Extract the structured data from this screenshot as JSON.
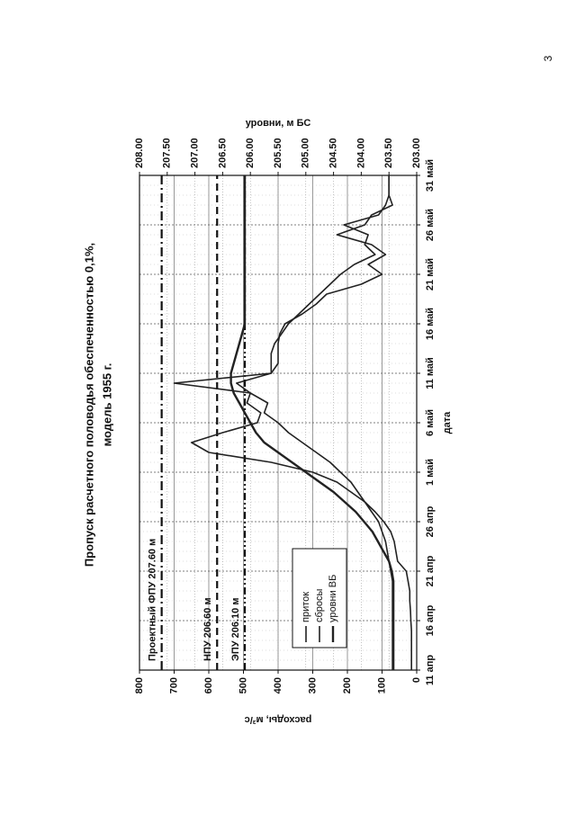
{
  "page_number": "3",
  "chart_data": {
    "type": "line",
    "title": "Пропуск расчетного половодья обеспеченностью 0,1%,",
    "subtitle": "модель 1955 г.",
    "x_label": "дата",
    "y_label": "расходы, м³/с",
    "y2_label": "уровни, м БС",
    "categories": [
      "11 апр",
      null,
      null,
      null,
      null,
      "16 апр",
      null,
      null,
      null,
      null,
      "21 апр",
      null,
      null,
      null,
      null,
      "26 апр",
      null,
      null,
      null,
      null,
      "1 май",
      null,
      null,
      null,
      null,
      "6 май",
      null,
      null,
      null,
      null,
      "11 май",
      null,
      null,
      null,
      null,
      "16 май",
      null,
      null,
      null,
      null,
      "21 май",
      null,
      null,
      null,
      null,
      "26 май",
      null,
      null,
      null,
      null,
      "31 май"
    ],
    "ylim": [
      0,
      800
    ],
    "yticks": [
      0,
      100,
      200,
      300,
      400,
      500,
      600,
      700,
      800
    ],
    "y2lim": [
      203,
      208
    ],
    "y2ticks": [
      {
        "value": 203,
        "label": "203.00"
      },
      {
        "value": 203.5,
        "label": "203.50"
      },
      {
        "value": 204,
        "label": "204.00"
      },
      {
        "value": 204.5,
        "label": "204.50"
      },
      {
        "value": 205,
        "label": "205.00"
      },
      {
        "value": 205.5,
        "label": "205.50"
      },
      {
        "value": 206,
        "label": "206.00"
      },
      {
        "value": 206.5,
        "label": "206.50"
      },
      {
        "value": 207,
        "label": "207.00"
      },
      {
        "value": 207.5,
        "label": "207.50"
      },
      {
        "value": 208,
        "label": "208.00"
      }
    ],
    "grid": true,
    "legend": "lower left",
    "series": [
      {
        "name": "приток",
        "color": "#222222",
        "values": [
          15,
          15,
          15,
          15,
          15,
          17,
          18,
          20,
          20,
          25,
          30,
          55,
          60,
          65,
          75,
          95,
          120,
          150,
          190,
          230,
          300,
          420,
          600,
          650,
          560,
          460,
          450,
          490,
          480,
          520,
          420,
          400,
          400,
          400,
          395,
          380,
          330,
          290,
          260,
          160,
          100,
          140,
          90,
          130,
          230,
          150,
          130,
          70,
          80,
          80,
          80
        ]
      },
      {
        "name": "сбросы",
        "color": "#222222",
        "values": [
          70,
          70,
          70,
          70,
          70,
          70,
          70,
          70,
          70,
          70,
          75,
          80,
          85,
          90,
          100,
          110,
          130,
          150,
          170,
          190,
          220,
          250,
          290,
          330,
          370,
          400,
          440,
          430,
          480,
          700,
          420,
          420,
          420,
          410,
          390,
          370,
          340,
          310,
          280,
          250,
          220,
          180,
          120,
          150,
          140,
          210,
          110,
          90,
          80,
          80,
          80
        ]
      },
      {
        "name": "уровни ВБ",
        "color": "#222222",
        "axis": "y2",
        "values": [
          203.42,
          203.42,
          203.42,
          203.42,
          203.42,
          203.42,
          203.42,
          203.42,
          203.42,
          203.42,
          203.45,
          203.5,
          203.6,
          203.7,
          203.8,
          203.95,
          204.1,
          204.3,
          204.5,
          204.75,
          205,
          205.25,
          205.5,
          205.75,
          205.9,
          206,
          206.1,
          206.2,
          206.3,
          206.35,
          206.35,
          206.3,
          206.25,
          206.2,
          206.15,
          206.1,
          206.1,
          206.1,
          206.1,
          206.1,
          206.1,
          206.1,
          206.1,
          206.1,
          206.1,
          206.1,
          206.1,
          206.1,
          206.1,
          206.1,
          206.1
        ]
      }
    ],
    "reference_lines": [
      {
        "label": "Проектный ФПУ 207.60 м",
        "value": 207.6,
        "style": "dashdot"
      },
      {
        "label": "НПУ 206.60 м",
        "value": 206.6,
        "style": "dashed"
      },
      {
        "label": "ЭПУ 206.10 м",
        "value": 206.1,
        "style": "dashdotdot"
      }
    ]
  }
}
